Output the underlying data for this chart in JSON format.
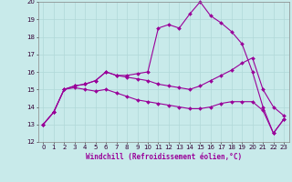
{
  "xlabel": "Windchill (Refroidissement éolien,°C)",
  "xlim": [
    -0.5,
    23.5
  ],
  "ylim": [
    12,
    20
  ],
  "xticks": [
    0,
    1,
    2,
    3,
    4,
    5,
    6,
    7,
    8,
    9,
    10,
    11,
    12,
    13,
    14,
    15,
    16,
    17,
    18,
    19,
    20,
    21,
    22,
    23
  ],
  "yticks": [
    12,
    13,
    14,
    15,
    16,
    17,
    18,
    19,
    20
  ],
  "bg_color": "#c8eaea",
  "grid_color": "#b0d8d8",
  "line_color": "#990099",
  "line1": [
    13.0,
    13.7,
    15.0,
    15.2,
    15.3,
    15.5,
    16.0,
    15.8,
    15.8,
    15.9,
    16.0,
    18.5,
    18.7,
    18.5,
    19.3,
    20.0,
    19.2,
    18.8,
    18.3,
    17.6,
    16.0,
    14.0,
    12.5,
    13.3
  ],
  "line2": [
    13.0,
    13.7,
    15.0,
    15.2,
    15.3,
    15.5,
    16.0,
    15.8,
    15.7,
    15.6,
    15.5,
    15.3,
    15.2,
    15.1,
    15.0,
    15.2,
    15.5,
    15.8,
    16.1,
    16.5,
    16.8,
    15.0,
    14.0,
    13.5
  ],
  "line3": [
    13.0,
    13.7,
    15.0,
    15.1,
    15.0,
    14.9,
    15.0,
    14.8,
    14.6,
    14.4,
    14.3,
    14.2,
    14.1,
    14.0,
    13.9,
    13.9,
    14.0,
    14.2,
    14.3,
    14.3,
    14.3,
    13.8,
    12.5,
    13.3
  ],
  "marker": "D",
  "markersize": 2.0,
  "linewidth": 0.8,
  "label_fontsize": 5.5,
  "tick_fontsize": 5.0
}
